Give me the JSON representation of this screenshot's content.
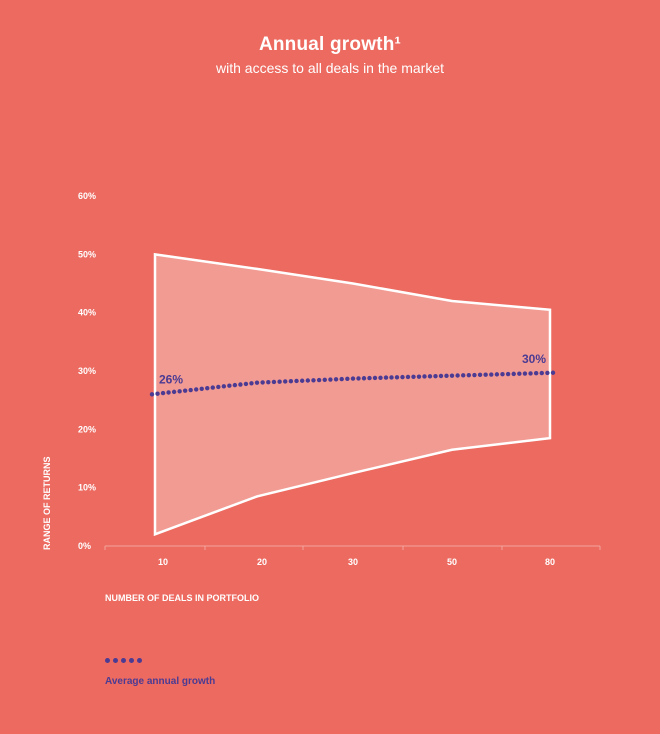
{
  "title": "Annual growth¹",
  "subtitle": "with access to all deals in the market",
  "legend": {
    "label": "Average annual growth"
  },
  "colors": {
    "background": "#ec6a60",
    "band_fill": "#f29b93",
    "band_stroke": "#ffffff",
    "series": "#4b3b93"
  },
  "chart_data": {
    "type": "area",
    "xlabel": "NUMBER OF DEALS IN PORTFOLIO",
    "ylabel": "RANGE OF RETURNS",
    "x_categories": [
      "10",
      "20",
      "30",
      "50",
      "80"
    ],
    "y_ticks": [
      "0%",
      "10%",
      "20%",
      "30%",
      "40%",
      "50%",
      "60%"
    ],
    "ylim": [
      0,
      60
    ],
    "grid": false,
    "legend_position": "bottom-left",
    "band": {
      "upper": [
        50,
        47.5,
        45,
        42,
        40.5
      ],
      "lower": [
        2,
        8.5,
        12.5,
        16.5,
        18.5
      ]
    },
    "series": [
      {
        "name": "Average annual growth",
        "style": "dotted",
        "values": [
          26,
          28,
          28.7,
          29.2,
          29.7
        ]
      }
    ],
    "annotations": [
      {
        "x": "10",
        "text": "26%"
      },
      {
        "x": "80",
        "text": "30%"
      }
    ]
  }
}
